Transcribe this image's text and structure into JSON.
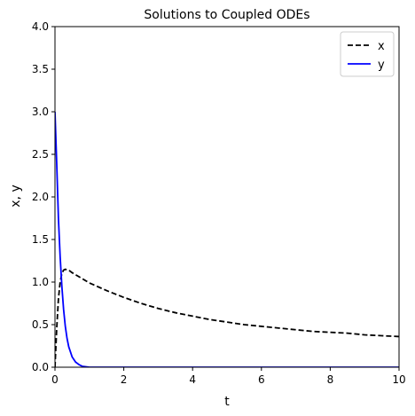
{
  "chart_data": {
    "type": "line",
    "title": "Solutions to Coupled ODEs",
    "xlabel": "t",
    "ylabel": "x, y",
    "xlim": [
      0,
      10
    ],
    "ylim": [
      0,
      4
    ],
    "xticks": [
      "0",
      "2",
      "4",
      "6",
      "8",
      "10"
    ],
    "yticks": [
      "0.0",
      "0.5",
      "1.0",
      "1.5",
      "2.0",
      "2.5",
      "3.0",
      "3.5",
      "4.0"
    ],
    "grid": false,
    "legend": "top-right",
    "series": [
      {
        "name": "x",
        "color": "#000000",
        "style": "dashed",
        "x": [
          0,
          0.05,
          0.1,
          0.15,
          0.2,
          0.25,
          0.3,
          0.4,
          0.5,
          0.75,
          1,
          1.5,
          2,
          2.5,
          3,
          3.5,
          4,
          4.5,
          5,
          5.5,
          6,
          6.5,
          7,
          7.5,
          8,
          8.5,
          9,
          9.5,
          10
        ],
        "values": [
          0,
          0.45,
          0.8,
          1.0,
          1.1,
          1.14,
          1.15,
          1.14,
          1.11,
          1.05,
          0.99,
          0.9,
          0.82,
          0.75,
          0.69,
          0.64,
          0.6,
          0.56,
          0.53,
          0.5,
          0.48,
          0.46,
          0.44,
          0.42,
          0.41,
          0.4,
          0.38,
          0.37,
          0.36
        ]
      },
      {
        "name": "y",
        "color": "#0000ff",
        "style": "solid",
        "x": [
          0,
          0.05,
          0.1,
          0.15,
          0.2,
          0.25,
          0.3,
          0.35,
          0.4,
          0.5,
          0.6,
          0.7,
          0.8,
          1,
          1.5,
          2,
          4,
          6,
          8,
          10
        ],
        "values": [
          3.0,
          2.4,
          1.75,
          1.3,
          0.95,
          0.68,
          0.48,
          0.34,
          0.24,
          0.12,
          0.06,
          0.03,
          0.01,
          0.0,
          0,
          0,
          0,
          0,
          0,
          0
        ]
      }
    ]
  }
}
